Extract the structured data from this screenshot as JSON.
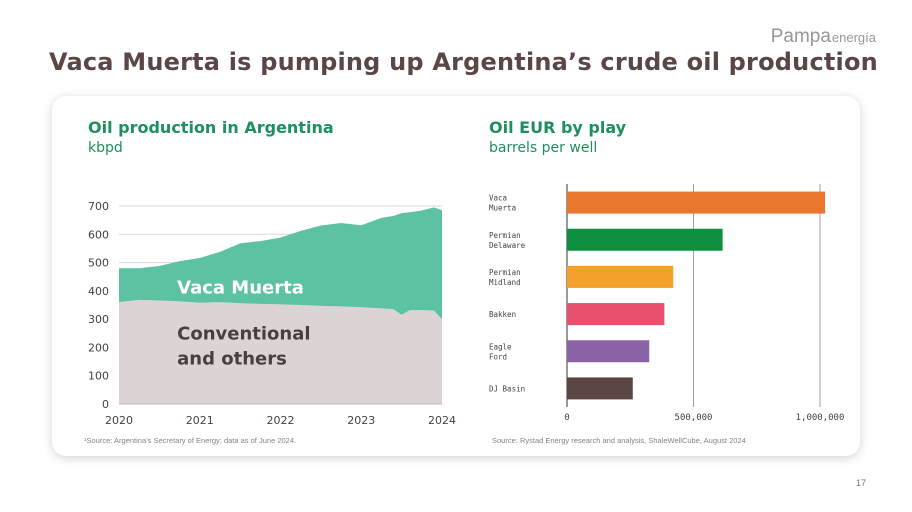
{
  "brand": {
    "logo_main": "Pampa",
    "logo_rest": "energía"
  },
  "slide": {
    "title": "Vaca Muerta is pumping up Argentina’s crude oil production",
    "page_number": "17"
  },
  "colors": {
    "title": "#5a4644",
    "accent_green": "#1e8f5e",
    "vaca_muerta_area": "#5dc2a3",
    "conventional_area": "#dcd4d4",
    "area_label": "#ffffff",
    "conventional_label": "#4a3f3f"
  },
  "left_panel": {
    "title": "Oil production in Argentina",
    "subtitle": "kbpd",
    "source_prefix": "¹Source:",
    "source_text": " Argentina’s Secretary of Energy; data as of June 2024."
  },
  "right_panel": {
    "title": "Oil EUR by play",
    "subtitle": "barrels per well",
    "source_prefix": "Source:",
    "source_text": " Rystad Energy research and analysis, ShaleWellCube, August 2024"
  },
  "chart_data": [
    {
      "type": "area",
      "stacked": true,
      "x_ticks": [
        2020,
        2021,
        2022,
        2023,
        2024
      ],
      "y_ticks": [
        0,
        100,
        200,
        300,
        400,
        500,
        600,
        700
      ],
      "xlim": [
        2020,
        2024
      ],
      "ylim": [
        0,
        700
      ],
      "grid": "horizontal",
      "x": [
        2020.0,
        2020.25,
        2020.5,
        2020.75,
        2021.0,
        2021.25,
        2021.5,
        2021.75,
        2022.0,
        2022.25,
        2022.5,
        2022.75,
        2023.0,
        2023.25,
        2023.4,
        2023.5,
        2023.6,
        2023.75,
        2023.9,
        2024.0
      ],
      "series": [
        {
          "name": "Conventional and others",
          "label_lines": [
            "Conventional",
            "and others"
          ],
          "values": [
            360,
            368,
            366,
            363,
            358,
            360,
            356,
            354,
            352,
            350,
            347,
            345,
            342,
            338,
            335,
            315,
            332,
            332,
            330,
            300
          ]
        },
        {
          "name": "Vaca Muerta",
          "label_lines": [
            "Vaca Muerta"
          ],
          "values": [
            120,
            112,
            122,
            142,
            158,
            178,
            212,
            222,
            236,
            262,
            284,
            295,
            290,
            320,
            330,
            360,
            346,
            352,
            365,
            385
          ]
        }
      ]
    },
    {
      "type": "bar",
      "orientation": "horizontal",
      "categories": [
        [
          "Vaca",
          "Muerta"
        ],
        [
          "Permian",
          "Delaware"
        ],
        [
          "Permian",
          "Midland"
        ],
        [
          "Bakken"
        ],
        [
          "Eagle",
          "Ford"
        ],
        [
          "DJ Basin"
        ]
      ],
      "values": [
        1020000,
        615000,
        420000,
        385000,
        325000,
        260000
      ],
      "colors": [
        "#e8762c",
        "#0e8f3f",
        "#f4a12c",
        "#e8506e",
        "#8c64a5",
        "#5c4644"
      ],
      "x_ticks": [
        0,
        500000,
        1000000
      ],
      "x_tick_labels": [
        "0",
        "500,000",
        "1,000,000"
      ],
      "xlim": [
        0,
        1000000
      ],
      "grid": "vertical"
    }
  ]
}
